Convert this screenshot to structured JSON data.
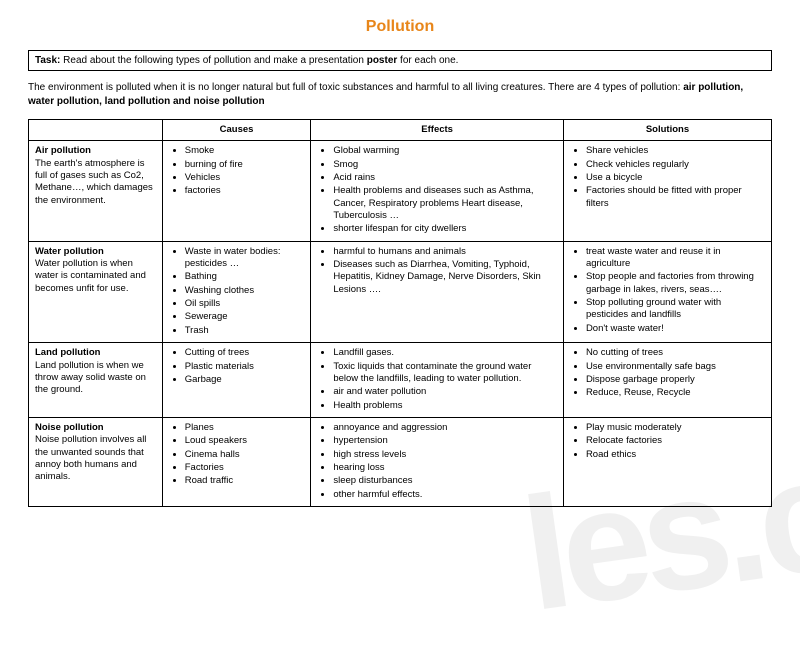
{
  "title": "Pollution",
  "title_color": "#e8861a",
  "task": {
    "label": "Task:",
    "text": " Read about the following types of pollution and make a presentation ",
    "bold_tail": "poster",
    "tail": " for each one."
  },
  "intro": {
    "text": "The environment is polluted when it is no longer natural but full of toxic substances and harmful to all living creatures. There are 4 types of pollution: ",
    "bold": "air pollution, water pollution, land pollution and noise pollution"
  },
  "headers": [
    "",
    "Causes",
    "Effects",
    "Solutions"
  ],
  "rows": [
    {
      "name": "Air pollution",
      "desc": "The earth's atmosphere is full of gases such as Co2, Methane…, which damages the environment.",
      "causes": [
        "Smoke",
        "burning of fire",
        "Vehicles",
        "factories"
      ],
      "effects": [
        "Global warming",
        "Smog",
        "Acid rains",
        "Health problems and diseases such as Asthma, Cancer, Respiratory problems Heart disease, Tuberculosis  …",
        "shorter lifespan for city dwellers"
      ],
      "solutions": [
        "Share vehicles",
        "Check vehicles regularly",
        "Use a bicycle",
        "Factories should be fitted with proper filters"
      ]
    },
    {
      "name": "Water pollution",
      "desc": "Water pollution is when water is contaminated and becomes unfit for use.",
      "causes": [
        "Waste in water bodies: pesticides …",
        "Bathing",
        "Washing clothes",
        "Oil spills",
        "Sewerage",
        "Trash"
      ],
      "effects": [
        "harmful to humans and animals",
        "Diseases such as Diarrhea, Vomiting, Typhoid, Hepatitis, Kidney Damage, Nerve Disorders, Skin Lesions …."
      ],
      "solutions": [
        "treat waste water and reuse it in agriculture",
        "Stop people and factories from throwing garbage in lakes, rivers, seas….",
        "Stop polluting ground water with pesticides and landfills",
        "Don't waste water!"
      ]
    },
    {
      "name": "Land pollution",
      "desc": "Land pollution is when we throw away solid waste on the ground.",
      "causes": [
        "Cutting of trees",
        "Plastic materials",
        "Garbage"
      ],
      "effects": [
        "Landfill gases.",
        " Toxic liquids that contaminate the ground water below the landfills, leading to water pollution.",
        " air and water pollution",
        " Health problems"
      ],
      "solutions": [
        "No cutting of trees",
        "Use environmentally safe bags",
        "Dispose garbage properly",
        "Reduce, Reuse, Recycle"
      ]
    },
    {
      "name": "Noise pollution",
      "desc": "Noise pollution involves all the unwanted sounds that annoy both humans and animals.",
      "causes": [
        "Planes",
        "Loud speakers",
        "Cinema halls",
        "Factories",
        "Road traffic"
      ],
      "effects": [
        "annoyance and aggression",
        "hypertension",
        "high stress levels",
        "hearing loss",
        "sleep disturbances",
        "other harmful effects."
      ],
      "solutions": [
        "Play music moderately",
        "Relocate factories",
        "Road ethics"
      ]
    }
  ],
  "watermark": "les.c"
}
